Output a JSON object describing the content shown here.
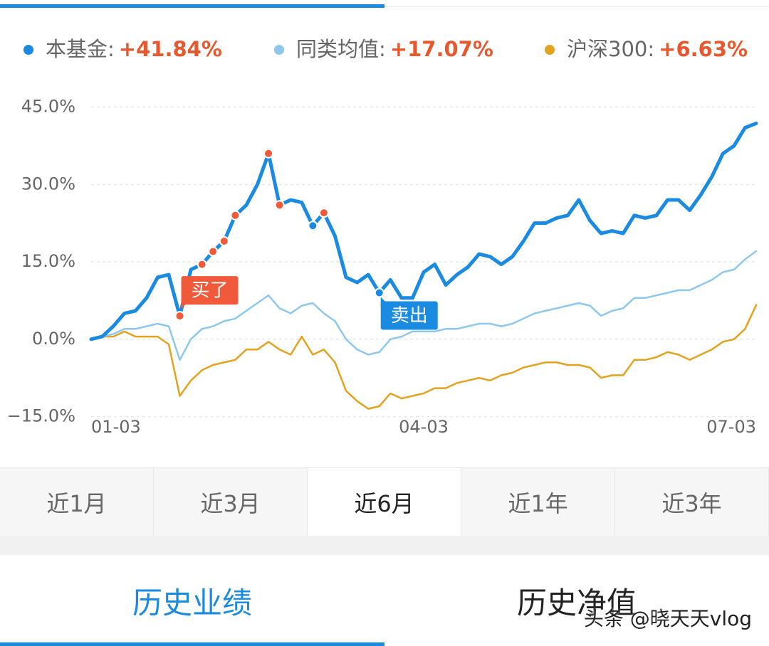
{
  "chart_data": {
    "type": "line",
    "legend_separator": ":",
    "categories": [
      "01-03",
      null,
      null,
      null,
      null,
      null,
      null,
      null,
      null,
      null,
      null,
      null,
      null,
      null,
      null,
      null,
      null,
      null,
      null,
      null,
      null,
      null,
      null,
      null,
      null,
      null,
      null,
      null,
      null,
      null,
      "04-03",
      null,
      null,
      null,
      null,
      null,
      null,
      null,
      null,
      null,
      null,
      null,
      null,
      null,
      null,
      null,
      null,
      null,
      null,
      null,
      null,
      null,
      null,
      null,
      null,
      null,
      null,
      null,
      null,
      null,
      "07-03"
    ],
    "ylim": [
      -17,
      47
    ],
    "yticks": [
      {
        "value": 45,
        "label": "45.0%"
      },
      {
        "value": 30,
        "label": "30.0%"
      },
      {
        "value": 15,
        "label": "15.0%"
      },
      {
        "value": 0,
        "label": "0.0%"
      },
      {
        "value": -15,
        "label": "−15.0%"
      }
    ],
    "grid": true,
    "series": [
      {
        "name": "本基金",
        "change_label": "+41.84%",
        "color": "#1a8be0",
        "width": 5,
        "values": [
          0,
          0.5,
          2.5,
          5,
          5.5,
          8,
          12,
          12.5,
          4.5,
          13.5,
          14.5,
          17,
          19,
          24,
          26,
          30,
          36,
          26,
          27,
          26.5,
          22,
          24.5,
          20,
          12,
          11,
          12.5,
          9,
          11.5,
          8,
          8,
          13,
          14.5,
          10.5,
          12.5,
          14,
          16.5,
          16,
          14.5,
          16,
          19,
          22.5,
          22.5,
          23.5,
          24,
          27,
          23,
          20.5,
          21,
          20.5,
          24,
          23.5,
          24,
          27,
          27,
          25,
          28,
          31.5,
          36,
          37.5,
          41,
          41.84
        ]
      },
      {
        "name": "同类均值",
        "change_label": "+17.07%",
        "color": "#8ec8ee",
        "width": 2.5,
        "values": [
          0,
          0.5,
          1,
          2,
          2,
          2.5,
          3,
          2.5,
          -4,
          0,
          2,
          2.5,
          3.5,
          4,
          5.5,
          7,
          8.5,
          6,
          5,
          6.5,
          7,
          5,
          3.5,
          0,
          -2,
          -3,
          -2.5,
          0,
          0.5,
          1.5,
          1.5,
          1.5,
          2,
          2,
          2.5,
          3,
          3,
          2.5,
          3,
          4,
          5,
          5.5,
          6,
          6.5,
          7,
          6.5,
          4.5,
          5.5,
          6,
          8,
          8,
          8.5,
          9,
          9.5,
          9.5,
          10.5,
          11.5,
          13,
          13.5,
          15.5,
          17.07
        ]
      },
      {
        "name": "沪深300",
        "change_label": "+6.63%",
        "color": "#e5a21e",
        "width": 2.5,
        "values": [
          0,
          0.5,
          0.5,
          1.5,
          0.5,
          0.5,
          0.5,
          -1,
          -11,
          -8,
          -6,
          -5,
          -4.5,
          -4,
          -2,
          -2,
          -0.5,
          -2,
          -3,
          0.5,
          -3,
          -2,
          -4.5,
          -10,
          -12,
          -13.5,
          -13,
          -10.5,
          -11.5,
          -11,
          -10.5,
          -9.5,
          -9.5,
          -8.5,
          -8,
          -7.5,
          -8,
          -7,
          -6.5,
          -5.5,
          -5,
          -4.5,
          -4.5,
          -5,
          -5,
          -5.5,
          -7.5,
          -7,
          -7,
          -4,
          -4,
          -3.5,
          -2.5,
          -3,
          -4,
          -3,
          -2,
          -0.5,
          0,
          2,
          6.63
        ]
      }
    ],
    "markers": [
      {
        "index": 8,
        "color": "#f05a3a"
      },
      {
        "index": 10,
        "color": "#f05a3a"
      },
      {
        "index": 11,
        "color": "#f05a3a"
      },
      {
        "index": 12,
        "color": "#f05a3a"
      },
      {
        "index": 13,
        "color": "#f05a3a"
      },
      {
        "index": 16,
        "color": "#f05a3a"
      },
      {
        "index": 17,
        "color": "#f05a3a"
      },
      {
        "index": 21,
        "color": "#f05a3a"
      },
      {
        "index": 20,
        "color": "#1a8be0"
      },
      {
        "index": 26,
        "color": "#1a8be0"
      }
    ],
    "annotations": [
      {
        "text": "买了",
        "index": 8,
        "color": "#f05a3a"
      },
      {
        "text": "卖出",
        "index": 26,
        "color": "#1a8be0"
      }
    ]
  },
  "range_tabs": {
    "items": [
      "近1月",
      "近3月",
      "近6月",
      "近1年",
      "近3年"
    ],
    "selected": 2
  },
  "bottom_tabs": {
    "items": [
      "历史业绩",
      "历史净值"
    ],
    "selected": 0
  },
  "watermark": "头条 @晓天天vlog"
}
